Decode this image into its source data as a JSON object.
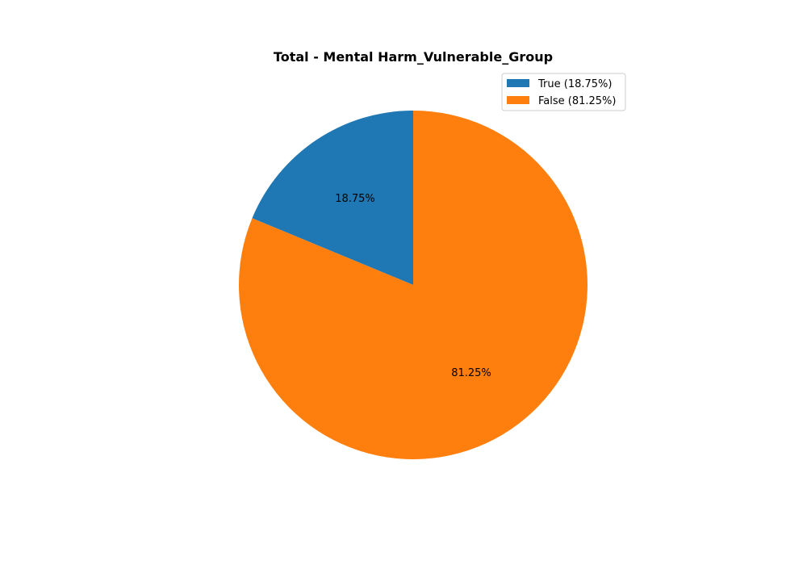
{
  "chart_data": {
    "type": "pie",
    "title": "Total - Mental Harm_Vulnerable_Group",
    "slices": [
      {
        "label": "True",
        "value": 18.75,
        "pct_label": "18.75%",
        "legend_label": "True (18.75%)",
        "color": "#1f77b4"
      },
      {
        "label": "False",
        "value": 81.25,
        "pct_label": "81.25%",
        "legend_label": "False (81.25%)",
        "color": "#ff7f0e"
      }
    ],
    "start_angle_deg": 90,
    "direction": "counterclockwise",
    "legend_position": "top-right"
  }
}
